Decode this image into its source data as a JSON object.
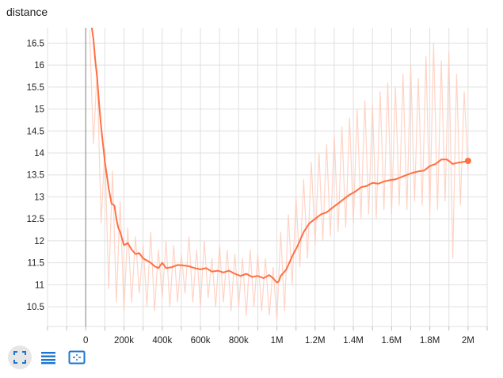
{
  "title": "distance",
  "toolbar": {
    "buttons": [
      {
        "name": "fit-domain-button",
        "icon": "fullscreen-corners-icon",
        "active": true
      },
      {
        "name": "log-scale-button",
        "icon": "list-lines-icon",
        "active": false
      },
      {
        "name": "expand-chart-button",
        "icon": "dashed-square-icon",
        "active": false
      }
    ]
  },
  "colors": {
    "line": "#ff7043",
    "raw": "#ffccbc",
    "toolbar_icon": "#1976d2",
    "grid": "#e0e0e0"
  },
  "chart_data": {
    "type": "line",
    "title": "distance",
    "xlabel": "",
    "ylabel": "",
    "grid": true,
    "xlim": [
      -200000,
      2100000
    ],
    "ylim": [
      10.05,
      16.85
    ],
    "xticks": [
      0,
      200000,
      400000,
      600000,
      800000,
      1000000,
      1200000,
      1400000,
      1600000,
      1800000,
      2000000
    ],
    "xtick_labels": [
      "0",
      "200k",
      "400k",
      "600k",
      "800k",
      "1M",
      "1.2M",
      "1.4M",
      "1.6M",
      "1.8M",
      "2M"
    ],
    "yticks": [
      10.5,
      11,
      11.5,
      12,
      12.5,
      13,
      13.5,
      14,
      14.5,
      15,
      15.5,
      16,
      16.5
    ],
    "ytick_labels": [
      "10.5",
      "11",
      "11.5",
      "12",
      "12.5",
      "13",
      "13.5",
      "14",
      "14.5",
      "15",
      "15.5",
      "16",
      "16.5"
    ],
    "series": [
      {
        "style": "smoothed",
        "x": [
          30000,
          40000,
          50000,
          60000,
          70000,
          80000,
          90000,
          100000,
          110000,
          120000,
          135000,
          150000,
          160000,
          170000,
          180000,
          200000,
          220000,
          240000,
          260000,
          280000,
          300000,
          320000,
          340000,
          360000,
          380000,
          400000,
          420000,
          450000,
          480000,
          510000,
          540000,
          570000,
          600000,
          630000,
          660000,
          690000,
          720000,
          750000,
          780000,
          810000,
          840000,
          870000,
          900000,
          930000,
          960000,
          980000,
          1000000,
          1010000,
          1020000,
          1050000,
          1080000,
          1110000,
          1140000,
          1170000,
          1200000,
          1230000,
          1260000,
          1290000,
          1320000,
          1350000,
          1380000,
          1410000,
          1440000,
          1470000,
          1500000,
          1530000,
          1560000,
          1590000,
          1620000,
          1650000,
          1680000,
          1710000,
          1740000,
          1770000,
          1800000,
          1830000,
          1860000,
          1890000,
          1920000,
          1950000,
          1980000,
          2000000
        ],
        "y": [
          16.9,
          16.6,
          16.1,
          15.7,
          15.1,
          14.6,
          14.2,
          13.8,
          13.5,
          13.2,
          12.85,
          12.8,
          12.5,
          12.3,
          12.2,
          11.9,
          11.95,
          11.8,
          11.7,
          11.72,
          11.6,
          11.55,
          11.5,
          11.42,
          11.38,
          11.5,
          11.38,
          11.4,
          11.45,
          11.44,
          11.42,
          11.38,
          11.35,
          11.38,
          11.3,
          11.32,
          11.28,
          11.32,
          11.25,
          11.2,
          11.25,
          11.18,
          11.2,
          11.15,
          11.22,
          11.15,
          11.05,
          11.08,
          11.2,
          11.35,
          11.65,
          11.9,
          12.2,
          12.4,
          12.5,
          12.6,
          12.65,
          12.75,
          12.85,
          12.95,
          13.05,
          13.12,
          13.22,
          13.25,
          13.32,
          13.3,
          13.35,
          13.38,
          13.4,
          13.45,
          13.5,
          13.55,
          13.58,
          13.6,
          13.7,
          13.75,
          13.85,
          13.85,
          13.75,
          13.78,
          13.8,
          13.82
        ]
      },
      {
        "style": "raw",
        "x": [
          20000,
          40000,
          60000,
          80000,
          100000,
          120000,
          140000,
          160000,
          180000,
          200000,
          220000,
          240000,
          260000,
          280000,
          300000,
          320000,
          340000,
          360000,
          380000,
          400000,
          420000,
          440000,
          460000,
          480000,
          500000,
          520000,
          540000,
          560000,
          580000,
          600000,
          620000,
          640000,
          660000,
          680000,
          700000,
          720000,
          740000,
          760000,
          780000,
          800000,
          820000,
          840000,
          860000,
          880000,
          900000,
          920000,
          940000,
          960000,
          980000,
          1000000,
          1020000,
          1040000,
          1060000,
          1080000,
          1100000,
          1120000,
          1140000,
          1160000,
          1180000,
          1200000,
          1220000,
          1240000,
          1260000,
          1280000,
          1300000,
          1320000,
          1340000,
          1360000,
          1380000,
          1400000,
          1420000,
          1440000,
          1460000,
          1480000,
          1500000,
          1520000,
          1540000,
          1560000,
          1580000,
          1600000,
          1620000,
          1640000,
          1660000,
          1680000,
          1700000,
          1720000,
          1740000,
          1760000,
          1780000,
          1800000,
          1820000,
          1840000,
          1860000,
          1880000,
          1900000,
          1920000,
          1940000,
          1960000,
          1980000,
          2000000
        ],
        "y": [
          16.8,
          14.2,
          15.9,
          12.4,
          14.1,
          10.9,
          13.6,
          10.6,
          12.9,
          10.4,
          12.3,
          10.6,
          12.1,
          10.8,
          11.9,
          10.5,
          12.2,
          10.4,
          11.8,
          10.7,
          12.0,
          10.5,
          11.9,
          10.6,
          11.7,
          10.8,
          12.1,
          10.6,
          11.8,
          10.5,
          12.0,
          10.7,
          11.6,
          10.5,
          11.9,
          10.6,
          11.8,
          10.4,
          11.7,
          10.5,
          11.6,
          10.3,
          11.8,
          10.5,
          11.7,
          10.4,
          11.6,
          10.3,
          11.4,
          10.2,
          12.2,
          10.4,
          12.6,
          11.0,
          13.0,
          11.4,
          13.4,
          11.6,
          13.8,
          11.9,
          14.0,
          12.0,
          14.2,
          12.1,
          14.4,
          12.2,
          14.6,
          12.3,
          14.8,
          12.4,
          15.0,
          12.5,
          15.2,
          12.6,
          15.1,
          12.5,
          15.4,
          12.7,
          15.6,
          12.6,
          15.5,
          12.8,
          15.8,
          12.7,
          16.0,
          12.9,
          15.7,
          12.8,
          16.2,
          12.6,
          16.5,
          12.7,
          16.1,
          12.9,
          16.3,
          11.6,
          15.8,
          12.8,
          15.4,
          13.6
        ]
      }
    ],
    "end_marker": {
      "x": 2000000,
      "y": 13.82
    }
  }
}
